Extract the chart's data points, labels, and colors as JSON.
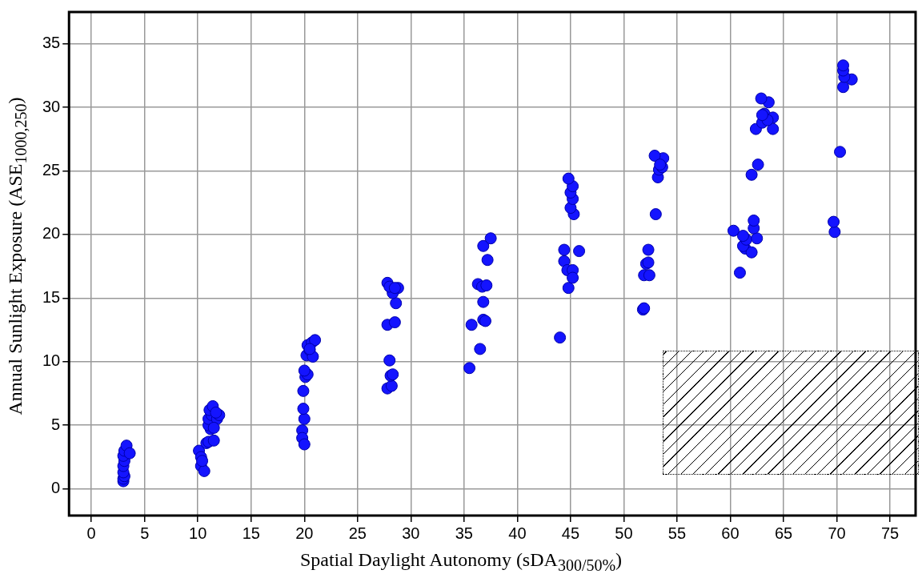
{
  "chart_data": {
    "type": "scatter",
    "xlabel": "Spatial Daylight Autonomy (sDA$_{300/50%}$)",
    "ylabel": "Annual Sunlight Exposure (ASE$_{1000,250}$)",
    "x": [
      3,
      3,
      3.1,
      3,
      3,
      3.1,
      3,
      3.1,
      3.3,
      3.6,
      10.1,
      10.3,
      10.3,
      10.6,
      10.4,
      10.8,
      11.0,
      11.5,
      11.2,
      11.0,
      11.0,
      11.3,
      11.1,
      11.4,
      11.8,
      12,
      11.5,
      11.7,
      19.8,
      19.8,
      20.0,
      20.0,
      19.9,
      19.9,
      20.1,
      20.3,
      20.0,
      20.2,
      20.5,
      20.3,
      20.7,
      21.0,
      20.8,
      20.5,
      27.8,
      28.2,
      28.1,
      28.3,
      28.0,
      27.8,
      28.5,
      28.6,
      28.8,
      28.3,
      27.8,
      28.0,
      28.5,
      35.5,
      36.5,
      35.7,
      36.8,
      37.0,
      36.8,
      36.3,
      36.7,
      37.1,
      36.8,
      37.2,
      37.5,
      44.0,
      44.8,
      44.4,
      44.7,
      45.2,
      45.2,
      44.4,
      45.8,
      45.3,
      45.0,
      45.2,
      45.0,
      45.2,
      44.8,
      51.8,
      51.9,
      51.9,
      52.4,
      52.1,
      52.3,
      52.3,
      53.0,
      53.2,
      53.3,
      53.6,
      53.7,
      52.9,
      53.4,
      60.9,
      60.3,
      61.4,
      62.0,
      61.2,
      61.5,
      61.2,
      62.5,
      62.2,
      62.2,
      62.0,
      62.6,
      62.4,
      63.0,
      63.2,
      64.0,
      64.0,
      63.5,
      63.6,
      62.9,
      63.0,
      69.8,
      69.7,
      70.3,
      70.6,
      71.4,
      70.7,
      70.6,
      70.6
    ],
    "values": [
      0.6,
      0.8,
      1.0,
      1.3,
      1.8,
      2.2,
      2.6,
      3.0,
      3.4,
      2.8,
      3.0,
      2.5,
      1.8,
      1.4,
      2.2,
      3.6,
      3.7,
      3.8,
      4.7,
      5.0,
      5.5,
      5.8,
      6.2,
      6.5,
      5.5,
      5.8,
      4.8,
      6.0,
      4.6,
      4.0,
      3.5,
      5.5,
      6.3,
      7.7,
      8.8,
      9.0,
      9.3,
      10.5,
      10.9,
      11.3,
      11.5,
      11.7,
      10.4,
      11.0,
      7.9,
      8.1,
      8.9,
      9.0,
      10.1,
      12.9,
      13.1,
      14.6,
      15.8,
      15.4,
      16.2,
      15.9,
      15.8,
      9.5,
      11.0,
      12.9,
      13.3,
      13.2,
      14.7,
      16.1,
      15.9,
      16.0,
      19.1,
      18.0,
      19.7,
      11.9,
      15.8,
      17.9,
      17.2,
      17.2,
      16.6,
      18.8,
      18.7,
      21.6,
      22.1,
      22.8,
      23.3,
      23.8,
      24.4,
      14.1,
      14.2,
      16.8,
      16.8,
      17.7,
      17.8,
      18.8,
      21.6,
      24.5,
      25.1,
      25.3,
      26.0,
      26.2,
      25.5,
      17.0,
      20.3,
      18.9,
      18.6,
      19.1,
      19.6,
      19.9,
      19.7,
      20.5,
      21.1,
      24.7,
      25.5,
      28.3,
      28.8,
      29.5,
      29.2,
      28.3,
      29.0,
      30.4,
      30.7,
      29.4,
      20.2,
      21.0,
      26.5,
      31.6,
      32.2,
      32.4,
      32.9,
      33.3
    ],
    "color": "#1414ff",
    "marker": "circle",
    "grid": true,
    "xlim": [
      -2.1,
      77.4
    ],
    "xticks": [
      0,
      5,
      10,
      15,
      20,
      25,
      30,
      35,
      40,
      45,
      50,
      55,
      60,
      65,
      70,
      75
    ],
    "ylim": [
      -2.1,
      37.5
    ],
    "yticks": [
      0,
      5,
      10,
      15,
      20,
      25,
      30,
      35
    ]
  }
}
